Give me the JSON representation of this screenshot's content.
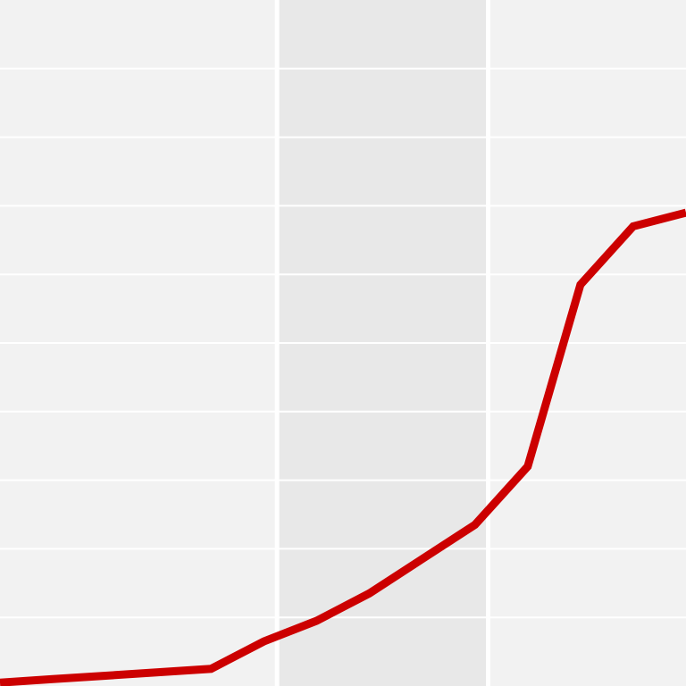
{
  "chart_data": {
    "type": "line",
    "title": "",
    "xlabel": "",
    "ylabel": "",
    "grid": true,
    "legend": "none",
    "xlim": [
      0,
      13
    ],
    "ylim": [
      0,
      10
    ],
    "highlight_band": [
      5.25,
      9.25
    ],
    "series": [
      {
        "name": "",
        "color": "#cc0000",
        "x": [
          0,
          1,
          2,
          3,
          4,
          5,
          6,
          7,
          8,
          9,
          10,
          11,
          12,
          13
        ],
        "y": [
          0.05,
          0.1,
          0.15,
          0.2,
          0.25,
          0.65,
          0.95,
          1.35,
          1.85,
          2.35,
          3.2,
          5.85,
          6.7,
          6.9
        ]
      }
    ]
  },
  "colors": {
    "background": "#f2f2f2",
    "band": "#e8e8e8",
    "grid": "#ffffff",
    "line": "#cc0000"
  }
}
